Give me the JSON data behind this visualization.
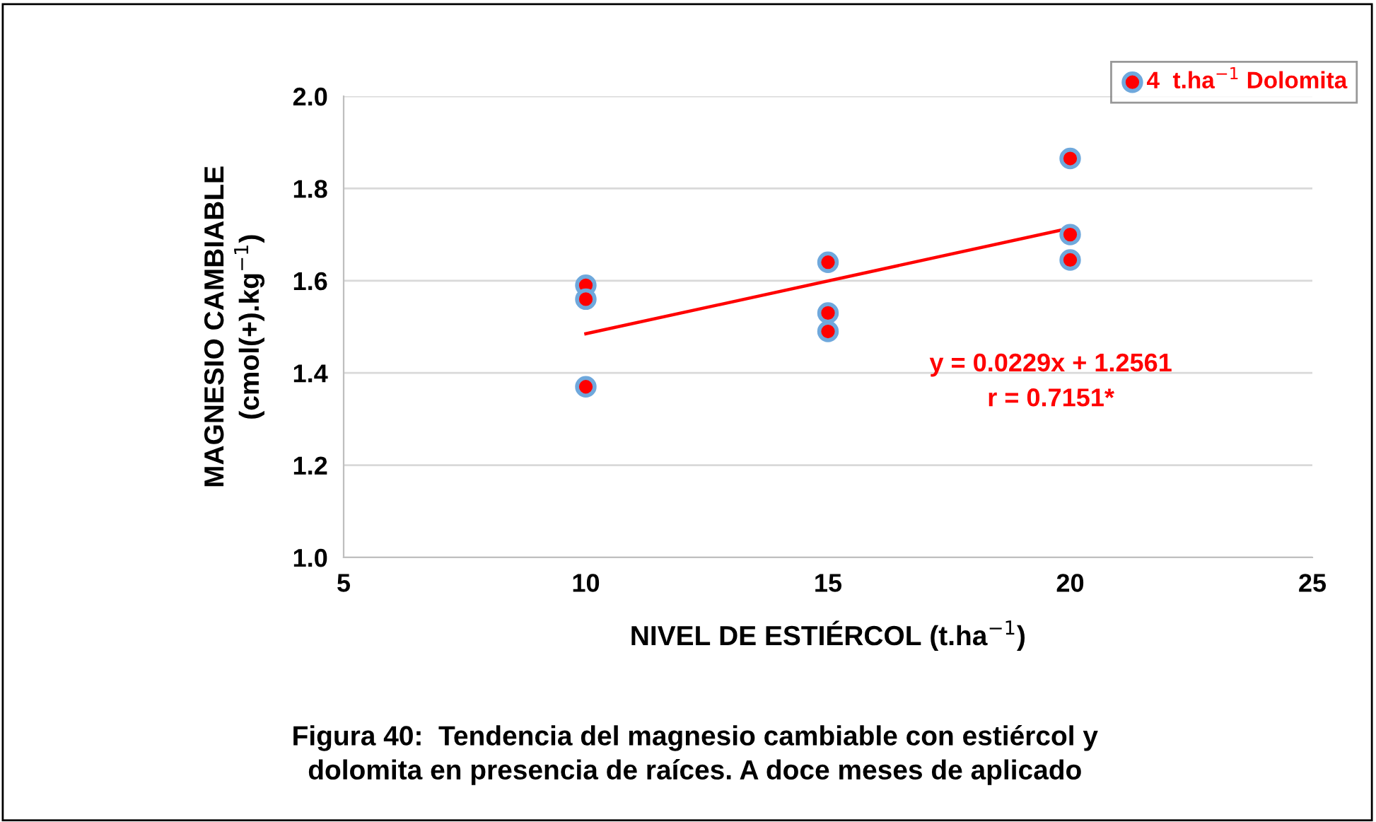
{
  "chart_data": {
    "type": "scatter",
    "xlabel": "NIVEL DE ESTIÉRCOL (t.ha$^{−1}$)",
    "ylabel": "MAGNESIO CAMBIABLE\n(cmol(+).kg$^{−1}$)",
    "xlim": [
      5,
      25
    ],
    "xticks": [
      5,
      10,
      15,
      20,
      25
    ],
    "ylim": [
      1.0,
      2.0
    ],
    "yticks": [
      {
        "value": 1.0,
        "label": "1.0"
      },
      1.2,
      1.4,
      1.6,
      1.8,
      {
        "value": 2.0,
        "label": "2.0"
      }
    ],
    "grid": "y",
    "legend": "top right",
    "series": [
      {
        "name": "4  t.ha$^{−1}$ Dolomita",
        "color": "#ff0000",
        "marker": "circle",
        "x": [
          10,
          10,
          10,
          15,
          15,
          15,
          20,
          20,
          20
        ],
        "values": [
          1.59,
          1.56,
          1.37,
          1.64,
          1.53,
          1.49,
          1.865,
          1.7,
          1.645
        ]
      },
      {
        "type": "line",
        "color": "#ff0000",
        "x": [
          10,
          20
        ],
        "values": [
          1.485,
          1.714
        ]
      }
    ],
    "annotations": [
      "y = 0.0229x + 1.2561\nr = 0.7151*",
      "Figura 40:  Tendencia del magnesio cambiable con estiércol y\ndolomita en presencia de raíces. A doce meses de aplicado"
    ]
  }
}
